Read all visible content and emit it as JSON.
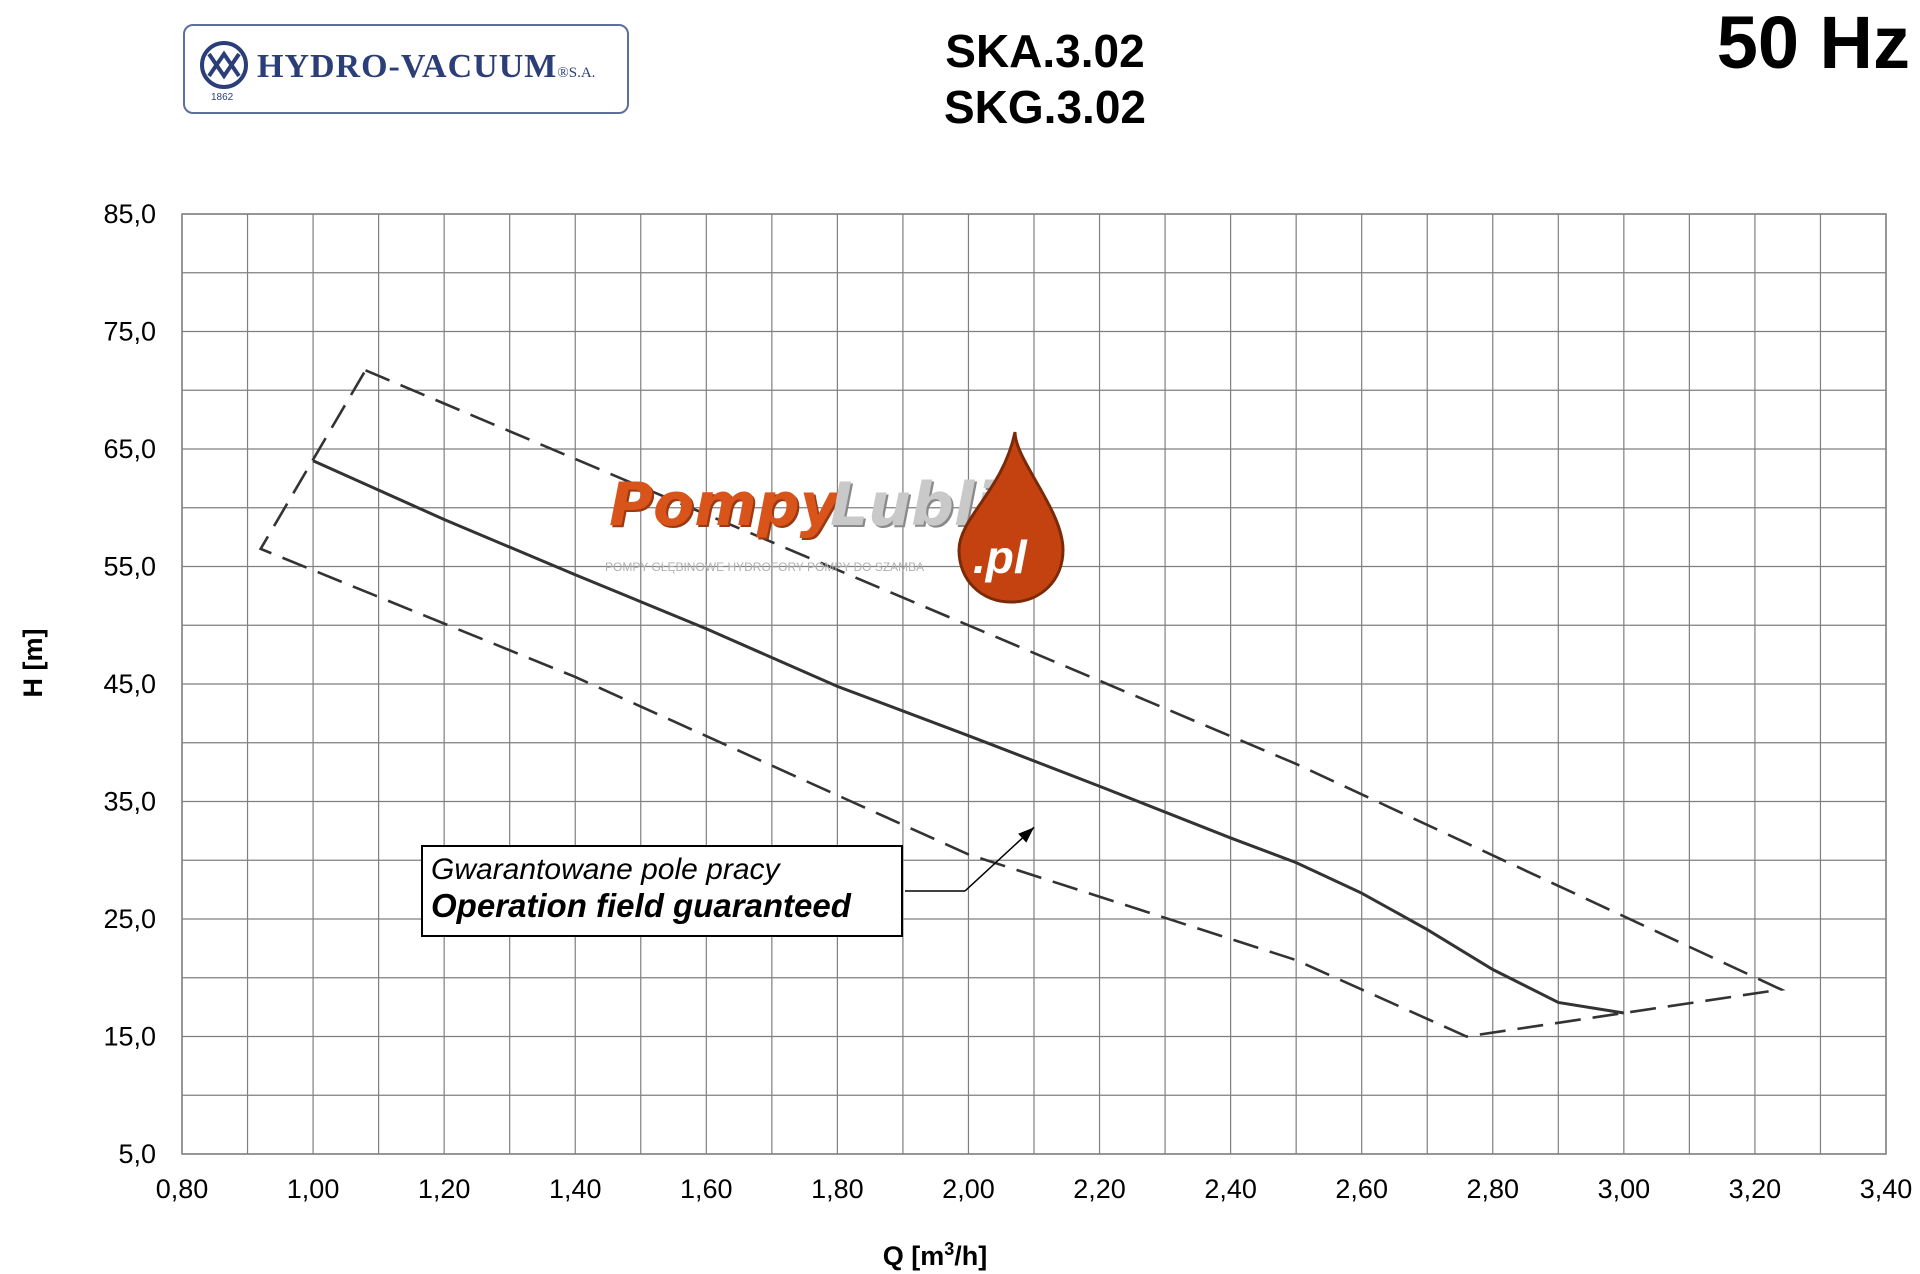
{
  "header": {
    "logo_text": "HYDRO-VACUUM",
    "logo_suffix": "®S.A.",
    "logo_year": "1862",
    "model_1": "SKA.3.02",
    "model_2": "SKG.3.02",
    "frequency": "50 Hz"
  },
  "watermark": {
    "word1": "Pompy",
    "word2": "Lublin",
    "domain": ".pl",
    "tagline": "POMPY GŁĘBINOWE HYDROFORY POMPY DO SZAMBA"
  },
  "annotation": {
    "line1": "Gwarantowane pole pracy",
    "line2": "Operation field guaranteed"
  },
  "chart_data": {
    "type": "line",
    "title": "",
    "xlabel_main": "Q [m",
    "xlabel_sup": "3",
    "xlabel_tail": "/h]",
    "ylabel": "H [m]",
    "xlim": [
      0.8,
      3.4
    ],
    "ylim": [
      5.0,
      85.0
    ],
    "x_major_ticks": [
      "0,80",
      "1,00",
      "1,20",
      "1,40",
      "1,60",
      "1,80",
      "2,00",
      "2,20",
      "2,40",
      "2,60",
      "2,80",
      "3,00",
      "3,20",
      "3,40"
    ],
    "y_major_ticks": [
      "5,0",
      "15,0",
      "25,0",
      "35,0",
      "45,0",
      "55,0",
      "65,0",
      "75,0",
      "85,0"
    ],
    "grid": true,
    "series": [
      {
        "style": "solid",
        "points": [
          [
            1.0,
            64.0
          ],
          [
            1.2,
            59.0
          ],
          [
            1.4,
            54.3
          ],
          [
            1.6,
            49.7
          ],
          [
            1.8,
            44.8
          ],
          [
            2.0,
            40.6
          ],
          [
            2.2,
            36.3
          ],
          [
            2.4,
            31.9
          ],
          [
            2.5,
            29.8
          ],
          [
            2.6,
            27.2
          ],
          [
            2.7,
            24.1
          ],
          [
            2.8,
            20.7
          ],
          [
            2.9,
            17.9
          ],
          [
            3.0,
            17.0
          ]
        ]
      },
      {
        "style": "dashed",
        "points": [
          [
            1.08,
            71.7
          ],
          [
            2.5,
            38.2
          ],
          [
            3.24,
            19.0
          ],
          [
            2.76,
            15.0
          ],
          [
            2.5,
            21.5
          ],
          [
            2.0,
            30.5
          ],
          [
            1.4,
            45.6
          ],
          [
            0.92,
            56.5
          ],
          [
            1.08,
            71.7
          ]
        ]
      }
    ]
  }
}
